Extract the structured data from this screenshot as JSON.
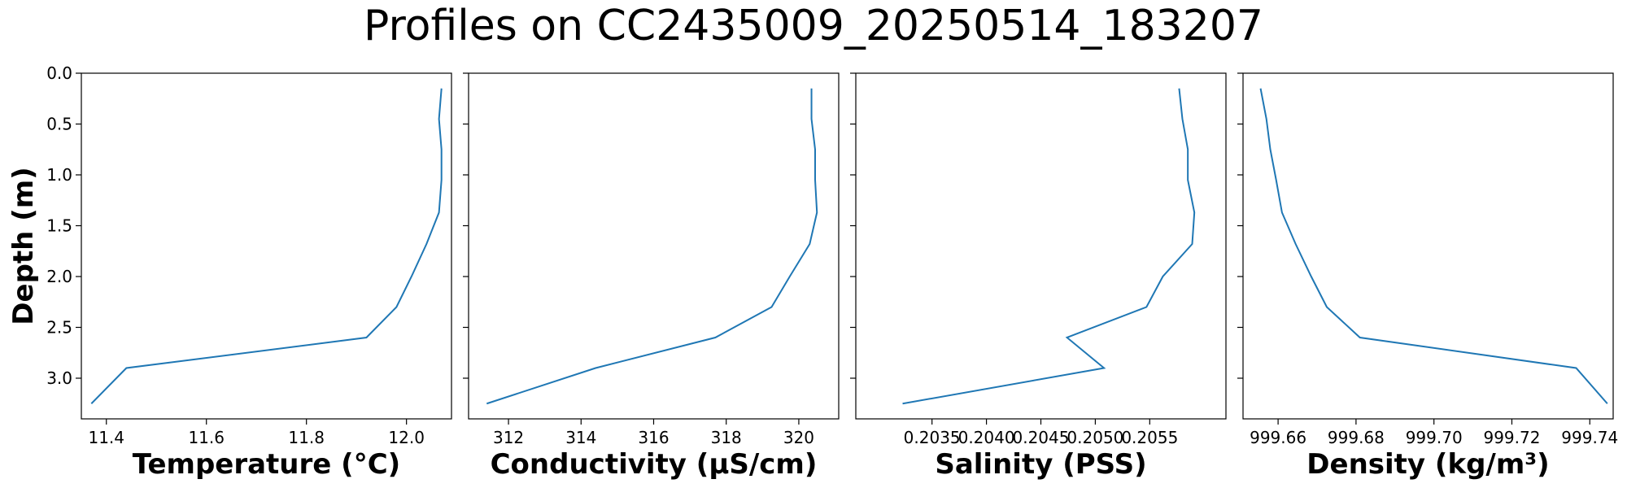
{
  "title": "Profiles on CC2435009_20250514_183207",
  "colors": {
    "line": "#1f77b4",
    "axes": "#000000",
    "background": "#ffffff"
  },
  "chart_data": [
    {
      "type": "line",
      "orientation": "profile",
      "xlabel": "Temperature (°C)",
      "ylabel": "Depth (m)",
      "xlim": [
        11.35,
        12.09
      ],
      "ylim": [
        3.4,
        0.0
      ],
      "y_inverted": true,
      "xticks": [
        "11.4",
        "11.6",
        "11.8",
        "12.0"
      ],
      "yticks": [
        "0.0",
        "0.5",
        "1.0",
        "1.5",
        "2.0",
        "2.5",
        "3.0"
      ],
      "grid": false,
      "series": [
        {
          "x": [
            12.07,
            12.065,
            12.07,
            12.07,
            12.065,
            12.04,
            12.01,
            11.98,
            11.92,
            11.44,
            11.37
          ],
          "y": [
            0.15,
            0.45,
            0.75,
            1.05,
            1.37,
            1.68,
            2.0,
            2.3,
            2.6,
            2.9,
            3.25
          ]
        }
      ]
    },
    {
      "type": "line",
      "orientation": "profile",
      "xlabel": "Conductivity (µS/cm)",
      "ylabel": "",
      "xlim": [
        310.9,
        321.1
      ],
      "ylim": [
        3.4,
        0.0
      ],
      "y_inverted": true,
      "xticks": [
        "312",
        "314",
        "316",
        "318",
        "320"
      ],
      "yticks": [],
      "grid": false,
      "series": [
        {
          "x": [
            320.35,
            320.35,
            320.45,
            320.45,
            320.5,
            320.3,
            319.75,
            319.25,
            317.7,
            314.4,
            311.4
          ],
          "y": [
            0.15,
            0.45,
            0.75,
            1.05,
            1.37,
            1.68,
            2.0,
            2.3,
            2.6,
            2.9,
            3.25
          ]
        }
      ]
    },
    {
      "type": "line",
      "orientation": "profile",
      "xlabel": "Salinity (PSS)",
      "ylabel": "",
      "xlim": [
        0.2028,
        0.2062
      ],
      "ylim": [
        3.4,
        0.0
      ],
      "y_inverted": true,
      "xticks": [
        "0.2035",
        "0.2040",
        "0.2045",
        "0.2050",
        "0.2055"
      ],
      "yticks": [],
      "grid": false,
      "series": [
        {
          "x": [
            0.20577,
            0.2058,
            0.20585,
            0.20585,
            0.20591,
            0.20589,
            0.20562,
            0.20547,
            0.20474,
            0.20508,
            0.20323
          ],
          "y": [
            0.15,
            0.45,
            0.75,
            1.05,
            1.37,
            1.68,
            2.0,
            2.3,
            2.6,
            2.9,
            3.25
          ]
        }
      ]
    },
    {
      "type": "line",
      "orientation": "profile",
      "xlabel": "Density (kg/m³)",
      "ylabel": "",
      "xlim": [
        999.651,
        999.746
      ],
      "ylim": [
        3.4,
        0.0
      ],
      "y_inverted": true,
      "xticks": [
        "999.66",
        "999.68",
        "999.70",
        "999.72",
        "999.74"
      ],
      "yticks": [],
      "grid": false,
      "series": [
        {
          "x": [
            999.6555,
            999.657,
            999.658,
            999.6595,
            999.661,
            999.6645,
            999.6685,
            999.6725,
            999.681,
            999.7365,
            999.7445
          ],
          "y": [
            0.15,
            0.45,
            0.75,
            1.05,
            1.37,
            1.68,
            2.0,
            2.3,
            2.6,
            2.9,
            3.25
          ]
        }
      ]
    }
  ]
}
